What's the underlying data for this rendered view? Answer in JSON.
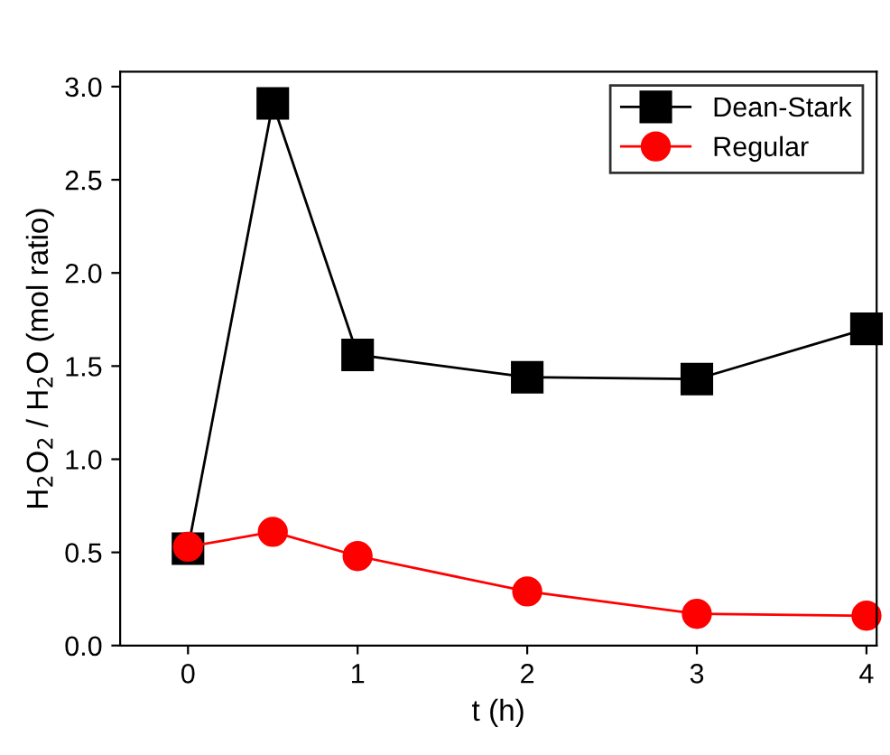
{
  "chart_data": {
    "type": "line",
    "xlabel": "t (h)",
    "ylabel": "H$_{2}$O$_{2}$ / H$_{2}$O (mol ratio)",
    "x": [
      0,
      0.5,
      1,
      2,
      3,
      4
    ],
    "series": [
      {
        "name": "Dean-Stark",
        "color": "#000000",
        "marker": "square",
        "values": [
          0.52,
          2.91,
          1.56,
          1.44,
          1.43,
          1.7
        ]
      },
      {
        "name": "Regular",
        "color": "#ff0000",
        "marker": "circle",
        "values": [
          0.53,
          0.61,
          0.48,
          0.29,
          0.17,
          0.16
        ]
      }
    ],
    "xlim": [
      -0.4,
      4.06
    ],
    "ylim": [
      0,
      3.08
    ],
    "xticks": [
      0,
      1,
      2,
      3,
      4
    ],
    "yticks": [
      {
        "value": 0,
        "label": "0.0"
      },
      {
        "value": 0.5,
        "label": "0.5"
      },
      {
        "value": 1,
        "label": "1.0"
      },
      {
        "value": 1.5,
        "label": "1.5"
      },
      {
        "value": 2,
        "label": "2.0"
      },
      {
        "value": 2.5,
        "label": "2.5"
      },
      {
        "value": 3,
        "label": "3.0"
      }
    ],
    "legend": "top right",
    "grid": false,
    "line_style": "solid"
  }
}
